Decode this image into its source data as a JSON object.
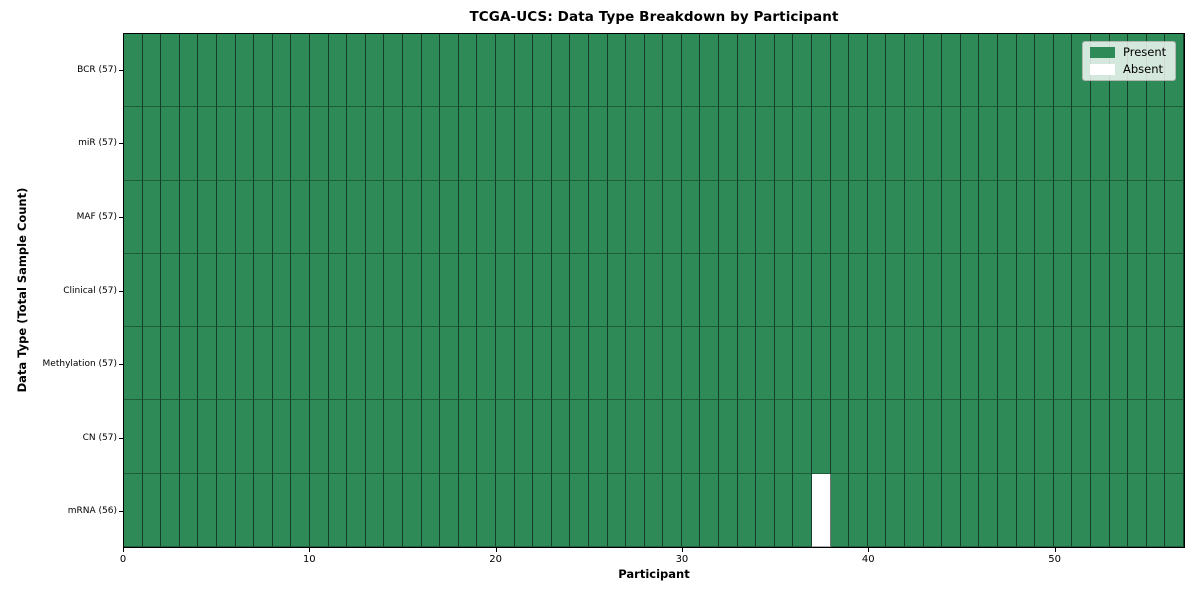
{
  "chart_data": {
    "type": "heatmap",
    "title": "TCGA-UCS: Data Type Breakdown by Participant",
    "xlabel": "Participant",
    "ylabel": "Data Type (Total Sample Count)",
    "x_ticks": [
      0,
      10,
      20,
      30,
      40,
      50
    ],
    "x_range": [
      0,
      57
    ],
    "n_participants": 57,
    "grid": "cell-borders",
    "legend": {
      "position": "upper right",
      "entries": [
        {
          "label": "Present",
          "color": "#2e8b57"
        },
        {
          "label": "Absent",
          "color": "#ffffff"
        }
      ]
    },
    "rows": [
      {
        "label": "BCR (57)",
        "data_type": "BCR",
        "total_samples": 57,
        "absent_participants": []
      },
      {
        "label": "miR (57)",
        "data_type": "miR",
        "total_samples": 57,
        "absent_participants": []
      },
      {
        "label": "MAF (57)",
        "data_type": "MAF",
        "total_samples": 57,
        "absent_participants": []
      },
      {
        "label": "Clinical (57)",
        "data_type": "Clinical",
        "total_samples": 57,
        "absent_participants": []
      },
      {
        "label": "Methylation (57)",
        "data_type": "Methylation",
        "total_samples": 57,
        "absent_participants": []
      },
      {
        "label": "CN (57)",
        "data_type": "CN",
        "total_samples": 57,
        "absent_participants": []
      },
      {
        "label": "mRNA (56)",
        "data_type": "mRNA",
        "total_samples": 56,
        "absent_participants": [
          37
        ]
      }
    ],
    "colors": {
      "present": "#2e8b57",
      "absent": "#ffffff",
      "cell_border": "rgba(0,0,0,0.55)",
      "axes": "#000000"
    }
  }
}
